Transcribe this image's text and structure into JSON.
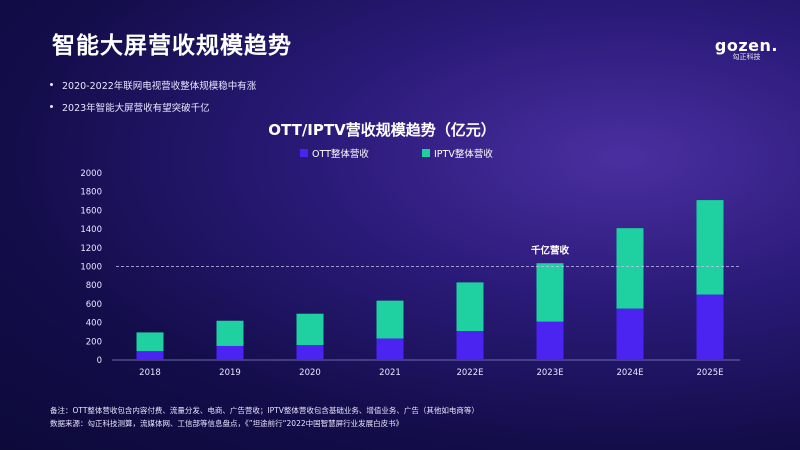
{
  "page": {
    "title": "智能大屏营收规模趋势",
    "logo_brand": "gozen.",
    "logo_sub": "勾正科技",
    "bullets": [
      "2020-2022年联网电视营收整体规模稳中有涨",
      "2023年智能大屏营收有望突破千亿"
    ],
    "notes": [
      "备注：OTT整体营收包含内容付费、流量分发、电商、广告营收；IPTV整体营收包含基础业务、增值业务、广告（其他如电商等）",
      "数据来源：勾正科技测算，流媒体网、工信部等信息盘点，《”坦途前行“2022中国智慧屏行业发展白皮书》"
    ]
  },
  "chart_data": {
    "type": "bar",
    "stacked": true,
    "title": "OTT/IPTV营收规模趋势（亿元）",
    "categories": [
      "2018",
      "2019",
      "2020",
      "2021",
      "2022E",
      "2023E",
      "2024E",
      "2025E"
    ],
    "series": [
      {
        "name": "OTT整体营收",
        "color": "#4b24f2",
        "values": [
          95,
          150,
          160,
          230,
          310,
          410,
          550,
          700
        ]
      },
      {
        "name": "IPTV整体营收",
        "color": "#1fd0a0",
        "values": [
          200,
          270,
          335,
          405,
          520,
          625,
          860,
          1010
        ]
      }
    ],
    "ylim": [
      0,
      2000
    ],
    "yticks": [
      0,
      200,
      400,
      600,
      800,
      1000,
      1200,
      1400,
      1600,
      1800,
      2000
    ],
    "reference_line": {
      "value": 1000,
      "label": "千亿营收"
    },
    "grid": false,
    "legend": "top"
  }
}
